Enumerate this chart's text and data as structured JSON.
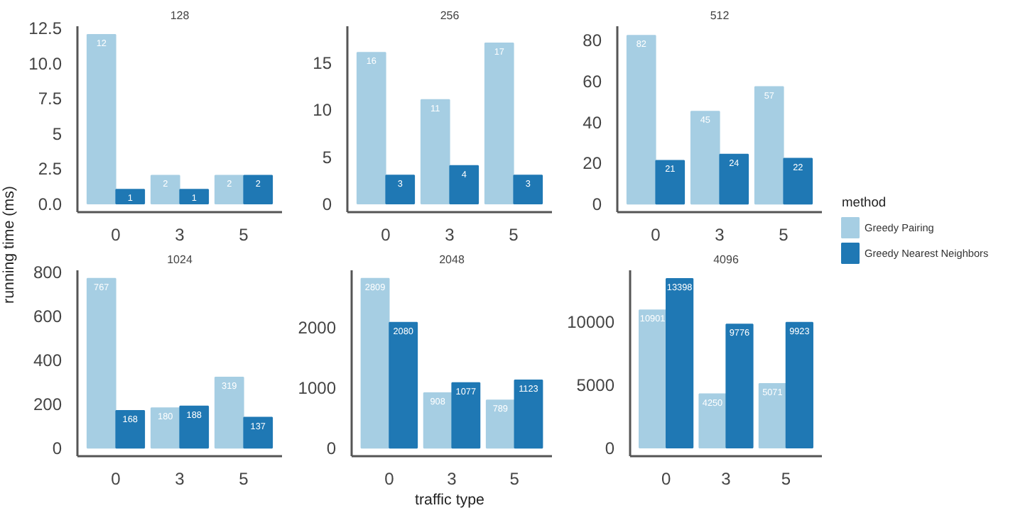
{
  "chart_data": [
    {
      "type": "bar",
      "title": "128",
      "categories": [
        "0",
        "3",
        "5"
      ],
      "ylim": [
        -0.6,
        12.6
      ],
      "yticks": [
        {
          "value": 0,
          "label": "0.0"
        },
        2.5,
        5,
        {
          "value": 7.5,
          "label": "7.5"
        },
        {
          "value": 10,
          "label": "10.0"
        },
        12.5
      ],
      "grid": false,
      "ylabel": "running time (ms)",
      "data_labels": true,
      "series": [
        {
          "color": "#a6cee3",
          "values": [
            12,
            2,
            2
          ]
        },
        {
          "color": "#1f78b4",
          "values": [
            1,
            1,
            2
          ]
        }
      ]
    },
    {
      "type": "bar",
      "title": "256",
      "categories": [
        "0",
        "3",
        "5"
      ],
      "ylim": [
        -0.9,
        18.8
      ],
      "yticks": [
        0,
        5,
        10,
        15
      ],
      "grid": false,
      "data_labels": true,
      "series": [
        {
          "color": "#a6cee3",
          "values": [
            16,
            11,
            17
          ]
        },
        {
          "color": "#1f78b4",
          "values": [
            3,
            4,
            3
          ]
        }
      ]
    },
    {
      "type": "bar",
      "title": "512",
      "categories": [
        "0",
        "3",
        "5"
      ],
      "ylim": [
        -4.1,
        86.6
      ],
      "yticks": [
        0,
        20,
        40,
        60,
        80
      ],
      "grid": false,
      "legend": "right",
      "legend_title": "method",
      "data_labels": true,
      "series": [
        {
          "name": "Greedy Pairing",
          "color": "#a6cee3",
          "values": [
            82,
            45,
            57
          ]
        },
        {
          "name": "Greedy Nearest Neighbors",
          "color": "#1f78b4",
          "values": [
            21,
            24,
            22
          ]
        }
      ]
    },
    {
      "type": "bar",
      "title": "1024",
      "categories": [
        "0",
        "3",
        "5"
      ],
      "ylim": [
        -38,
        805
      ],
      "yticks": [
        0,
        200,
        400,
        600,
        800
      ],
      "grid": false,
      "data_labels": true,
      "series": [
        {
          "color": "#a6cee3",
          "values": [
            767,
            180,
            319
          ]
        },
        {
          "color": "#1f78b4",
          "values": [
            168,
            188,
            137
          ]
        }
      ]
    },
    {
      "type": "bar",
      "title": "2048",
      "categories": [
        "0",
        "3",
        "5"
      ],
      "ylim": [
        -140,
        2949
      ],
      "yticks": [
        0,
        1000,
        2000
      ],
      "grid": false,
      "xlabel": "traffic type",
      "data_labels": true,
      "series": [
        {
          "color": "#a6cee3",
          "values": [
            2809,
            908,
            789
          ]
        },
        {
          "color": "#1f78b4",
          "values": [
            2080,
            1077,
            1123
          ]
        }
      ]
    },
    {
      "type": "bar",
      "title": "4096",
      "categories": [
        "0",
        "3",
        "5"
      ],
      "ylim": [
        -670,
        14068
      ],
      "yticks": [
        0,
        5000,
        10000
      ],
      "grid": false,
      "data_labels": true,
      "series": [
        {
          "color": "#a6cee3",
          "values": [
            10901,
            4250,
            5071
          ]
        },
        {
          "color": "#1f78b4",
          "values": [
            13398,
            9776,
            9923
          ]
        }
      ]
    }
  ]
}
